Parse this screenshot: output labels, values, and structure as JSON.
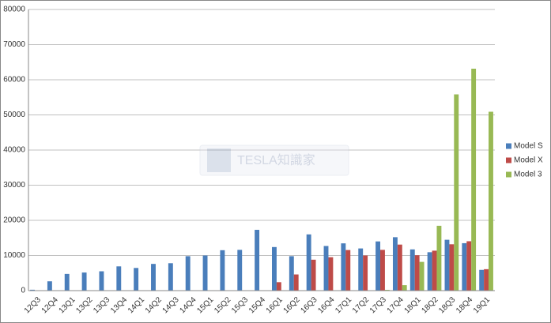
{
  "chart_data": {
    "type": "bar",
    "watermark": "TESLA知識家",
    "categories": [
      "12Q3",
      "12Q4",
      "13Q1",
      "13Q2",
      "13Q3",
      "13Q4",
      "14Q1",
      "14Q2",
      "14Q3",
      "14Q4",
      "15Q1",
      "15Q2",
      "15Q3",
      "15Q4",
      "16Q1",
      "16Q2",
      "16Q3",
      "16Q4",
      "17Q1",
      "17Q2",
      "17Q3",
      "17Q4",
      "18Q1",
      "18Q2",
      "18Q3",
      "18Q4",
      "19Q1"
    ],
    "series": [
      {
        "name": "Model S",
        "color": "#4a7ebb",
        "values": [
          250,
          2650,
          4750,
          5150,
          5500,
          6900,
          6450,
          7600,
          7800,
          9800,
          10000,
          11500,
          11600,
          17300,
          12400,
          9800,
          16000,
          12700,
          13450,
          12000,
          14000,
          15200,
          11730,
          10930,
          14470,
          13500,
          5900
        ]
      },
      {
        "name": "Model X",
        "color": "#be4b48",
        "values": [
          null,
          null,
          null,
          null,
          null,
          null,
          null,
          null,
          null,
          null,
          null,
          null,
          null,
          null,
          2400,
          4600,
          8800,
          9500,
          11550,
          10000,
          11600,
          13100,
          10070,
          11370,
          13190,
          14050,
          6100
        ]
      },
      {
        "name": "Model 3",
        "color": "#98b954",
        "values": [
          null,
          null,
          null,
          null,
          null,
          null,
          null,
          null,
          null,
          null,
          null,
          null,
          null,
          null,
          null,
          null,
          null,
          null,
          null,
          null,
          220,
          1550,
          8180,
          18450,
          55840,
          63150,
          50900
        ]
      }
    ],
    "ylim": [
      0,
      80000
    ],
    "yticks": [
      0,
      10000,
      20000,
      30000,
      40000,
      50000,
      60000,
      70000,
      80000
    ],
    "grid": true,
    "legend": "right"
  }
}
